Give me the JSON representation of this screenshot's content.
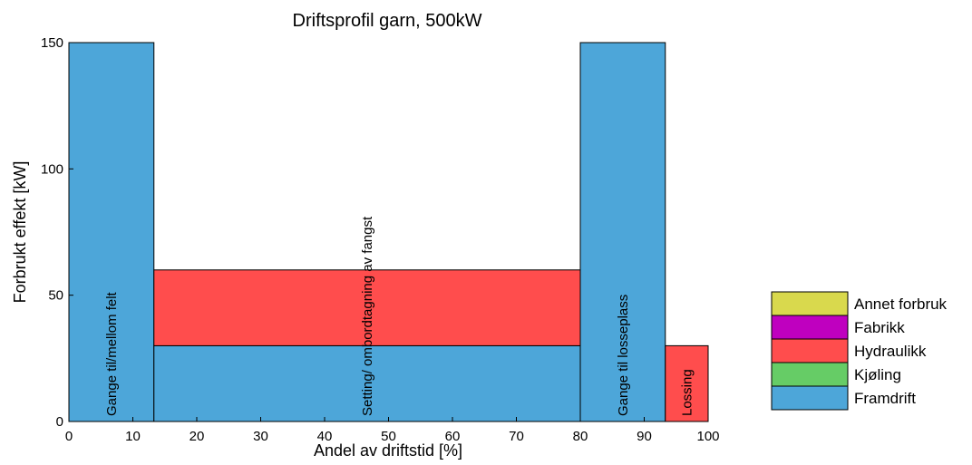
{
  "chart_data": {
    "type": "bar",
    "title": "Driftsprofil garn, 500kW",
    "xlabel": "Andel av driftstid [%]",
    "ylabel": "Forbrukt effekt [kW]",
    "xlim": [
      0,
      100
    ],
    "ylim": [
      0,
      150
    ],
    "xticks": [
      0,
      10,
      20,
      30,
      40,
      50,
      60,
      70,
      80,
      90,
      100
    ],
    "yticks": [
      0,
      50,
      100,
      150
    ],
    "grid": false,
    "legend_position": "right",
    "series": [
      {
        "name": "Annet forbruk",
        "color": "#d9d94d"
      },
      {
        "name": "Fabrikk",
        "color": "#bf00bf"
      },
      {
        "name": "Hydraulikk",
        "color": "#ff4d4d"
      },
      {
        "name": "Kjøling",
        "color": "#66cc66"
      },
      {
        "name": "Framdrift",
        "color": "#4da6d9"
      }
    ],
    "segments": [
      {
        "label": "Gange til/mellom felt",
        "x_start": 0,
        "x_end": 13.3,
        "values": {
          "Framdrift": 150,
          "Kjøling": 0,
          "Hydraulikk": 0,
          "Fabrikk": 0,
          "Annet forbruk": 0
        }
      },
      {
        "label": "Setting/ ombordtagning av fangst",
        "x_start": 13.3,
        "x_end": 80,
        "values": {
          "Framdrift": 30,
          "Kjøling": 0,
          "Hydraulikk": 30,
          "Fabrikk": 0,
          "Annet forbruk": 0
        }
      },
      {
        "label": "Gange til losseplass",
        "x_start": 80,
        "x_end": 93.3,
        "values": {
          "Framdrift": 150,
          "Kjøling": 0,
          "Hydraulikk": 0,
          "Fabrikk": 0,
          "Annet forbruk": 0
        }
      },
      {
        "label": "Lossing",
        "x_start": 93.3,
        "x_end": 100,
        "values": {
          "Framdrift": 0,
          "Kjøling": 0,
          "Hydraulikk": 30,
          "Fabrikk": 0,
          "Annet forbruk": 0
        }
      }
    ]
  }
}
